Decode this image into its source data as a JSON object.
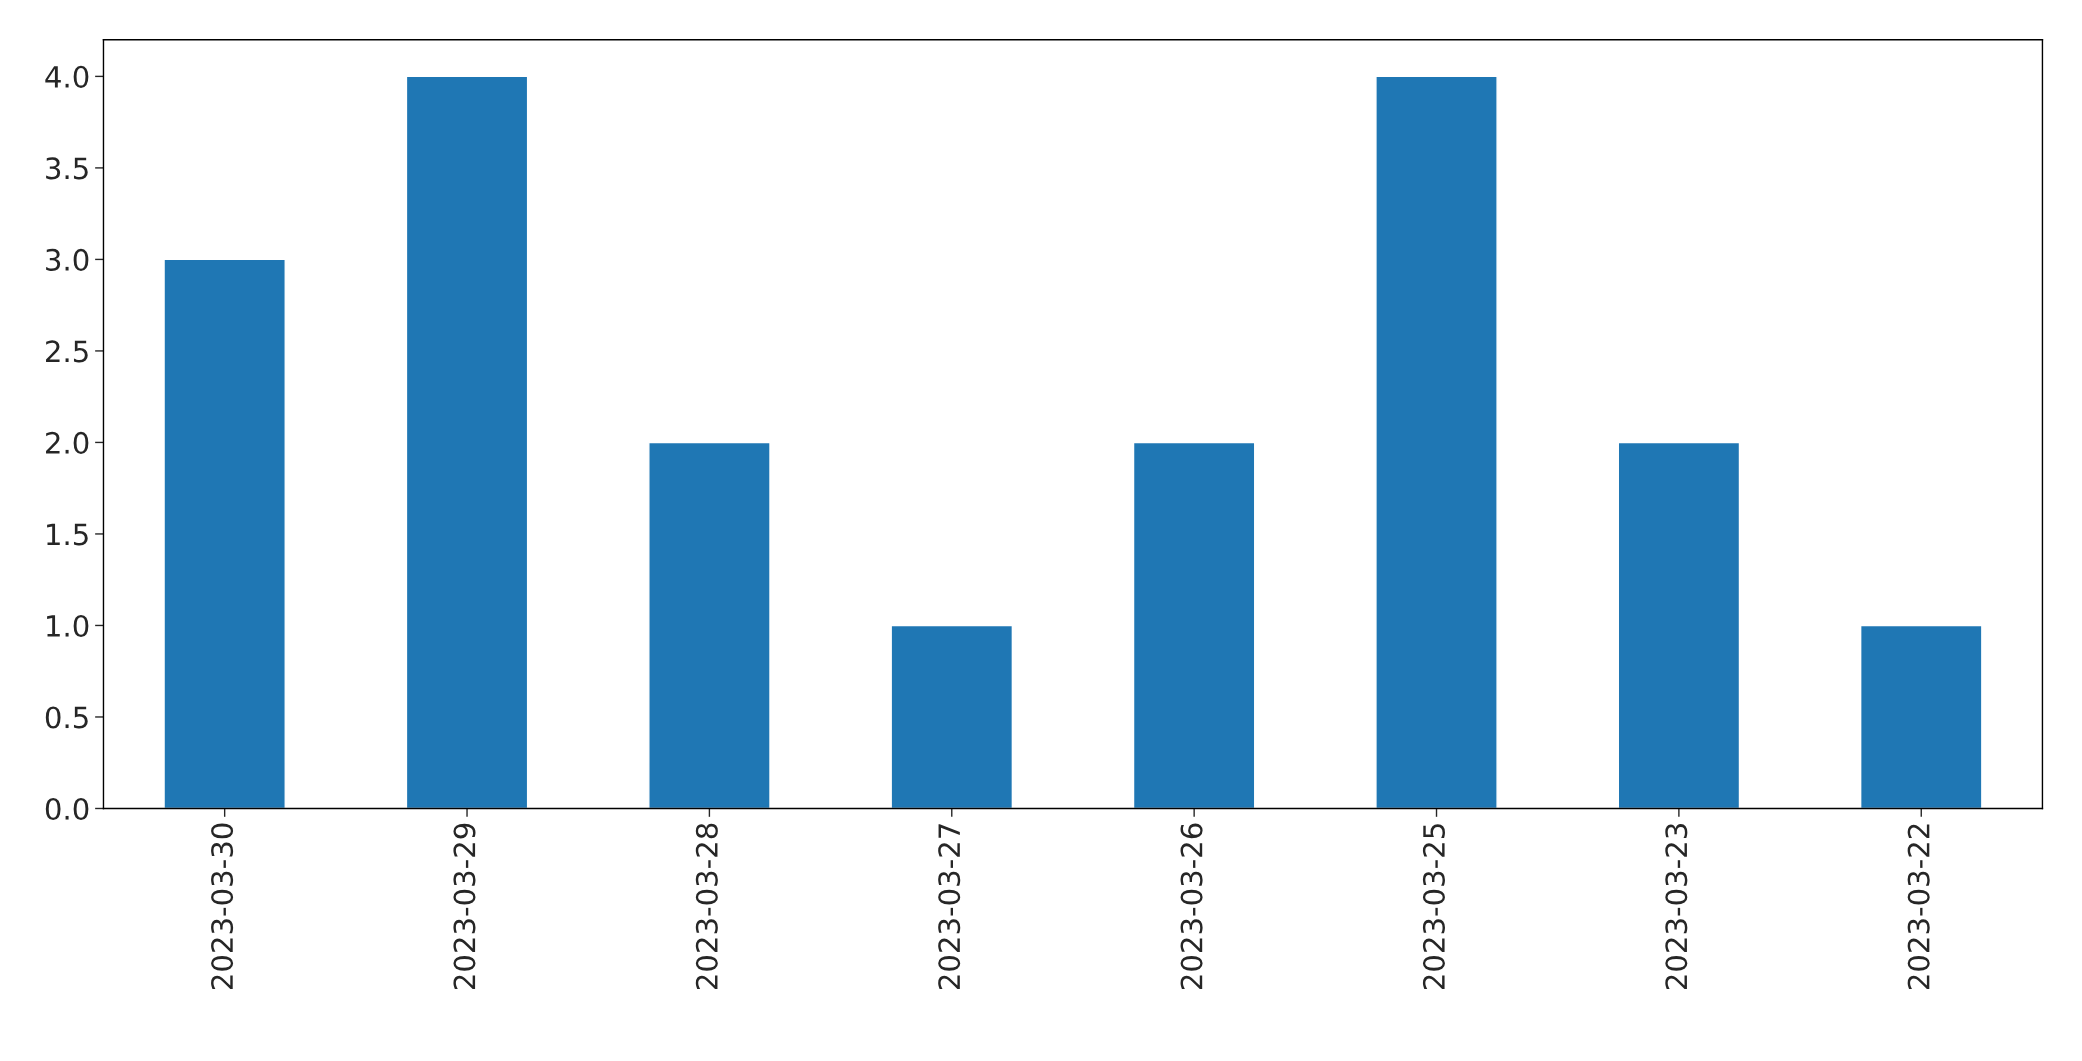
{
  "chart_data": {
    "type": "bar",
    "categories": [
      "2023-03-30",
      "2023-03-29",
      "2023-03-28",
      "2023-03-27",
      "2023-03-26",
      "2023-03-25",
      "2023-03-23",
      "2023-03-22"
    ],
    "values": [
      3,
      4,
      2,
      1,
      2,
      4,
      2,
      1
    ],
    "color": "#1f77b4",
    "ylim": [
      0,
      4.2
    ],
    "yticks": [
      {
        "value": 0,
        "label": "0.0"
      },
      {
        "value": 0.5,
        "label": "0.5"
      },
      {
        "value": 1,
        "label": "1.0"
      },
      {
        "value": 1.5,
        "label": "1.5"
      },
      {
        "value": 2,
        "label": "2.0"
      },
      {
        "value": 2.5,
        "label": "2.5"
      },
      {
        "value": 3,
        "label": "3.0"
      },
      {
        "value": 3.5,
        "label": "3.5"
      },
      {
        "value": 4,
        "label": "4.0"
      }
    ],
    "grid": false,
    "legend": false
  }
}
